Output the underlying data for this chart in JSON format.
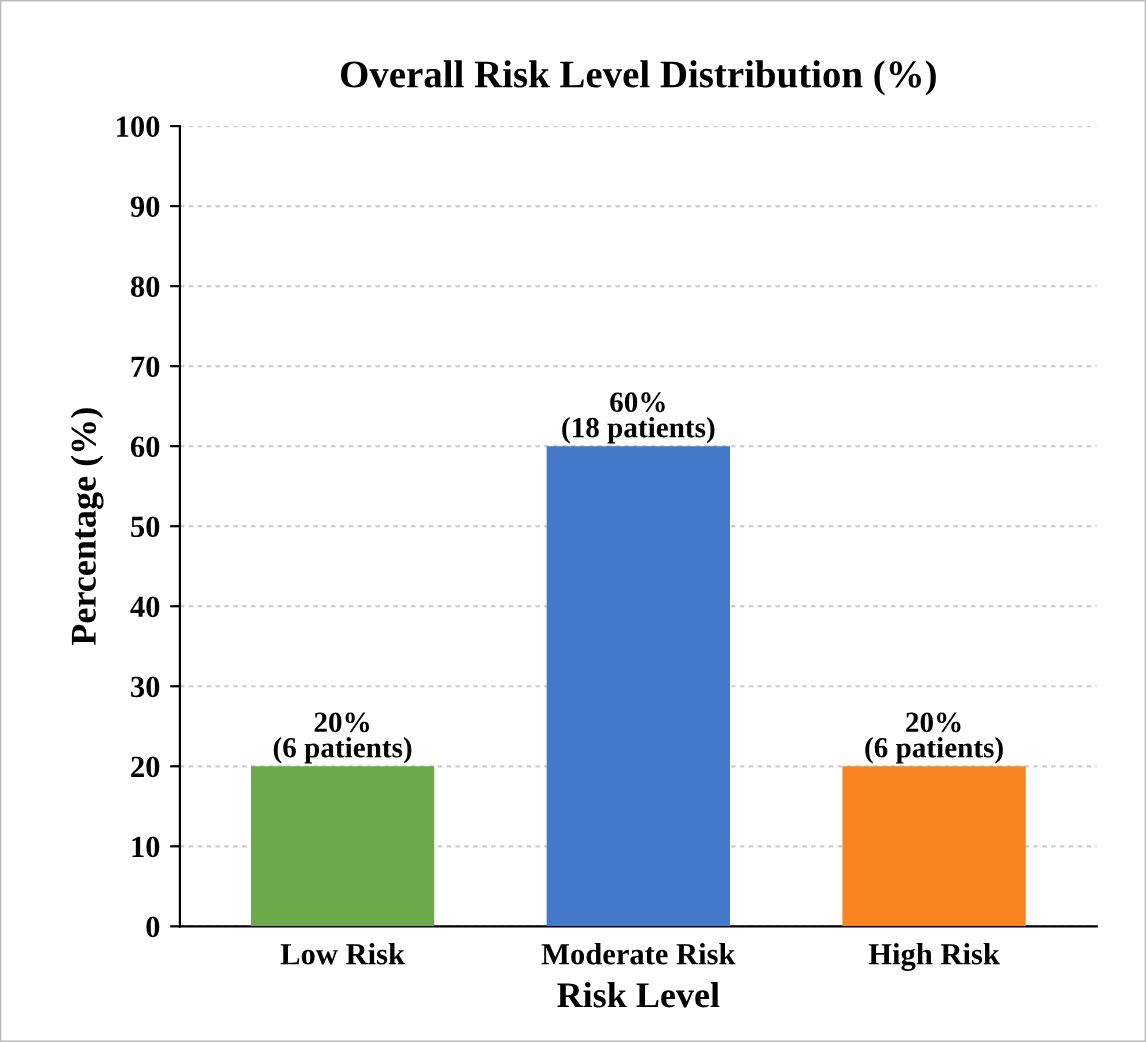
{
  "chart_data": {
    "type": "bar",
    "title": "Overall Risk Level Distribution (%)",
    "xlabel": "Risk Level",
    "ylabel": "Percentage (%)",
    "categories": [
      "Low Risk",
      "Moderate Risk",
      "High Risk"
    ],
    "values": [
      20,
      60,
      20
    ],
    "colors": [
      "#6aaa4b",
      "#4379c8",
      "#f7841f"
    ],
    "value_labels": [
      "20%\n(6 patients)",
      "60%\n(18 patients)",
      "20%\n(6 patients)"
    ],
    "ylim": [
      0,
      100
    ],
    "yticks": [
      0,
      10,
      20,
      30,
      40,
      50,
      60,
      70,
      80,
      90,
      100
    ],
    "grid": "y",
    "legend": false
  }
}
